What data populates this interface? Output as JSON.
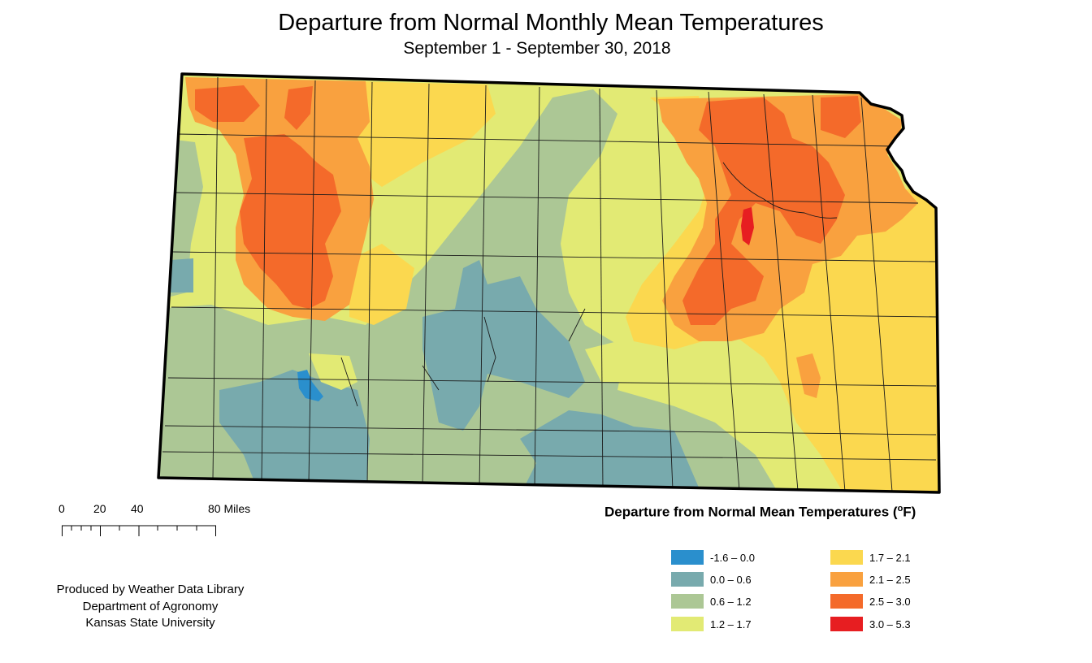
{
  "map": {
    "title": "Departure from Normal Monthly Mean Temperatures",
    "subtitle": "September 1 - September 30, 2018",
    "state": "Kansas",
    "colors": {
      "c1": "#2a8fcd",
      "c2": "#78aaad",
      "c3": "#acc795",
      "c4": "#e2ea74",
      "c5": "#fbd84f",
      "c6": "#f9a13f",
      "c7": "#f46a2a",
      "c8": "#e71e21"
    }
  },
  "scale": {
    "ticks": [
      "0",
      "20",
      "40",
      "80 Miles"
    ]
  },
  "legend": {
    "title": "Departure from Normal Mean Temperatures (",
    "unit_super": "o",
    "unit_tail": "F)",
    "items": [
      {
        "label": "-1.6 – 0.0",
        "color": "#2a8fcd"
      },
      {
        "label": "0.0 – 0.6",
        "color": "#78aaad"
      },
      {
        "label": "0.6 – 1.2",
        "color": "#acc795"
      },
      {
        "label": "1.2 – 1.7",
        "color": "#e2ea74"
      },
      {
        "label": "1.7 – 2.1",
        "color": "#fbd84f"
      },
      {
        "label": "2.1 – 2.5",
        "color": "#f9a13f"
      },
      {
        "label": "2.5 – 3.0",
        "color": "#f46a2a"
      },
      {
        "label": "3.0 – 5.3",
        "color": "#e71e21"
      }
    ]
  },
  "credit": {
    "line1": "Produced by Weather Data Library",
    "line2": "Department of Agronomy",
    "line3": "Kansas State University"
  }
}
